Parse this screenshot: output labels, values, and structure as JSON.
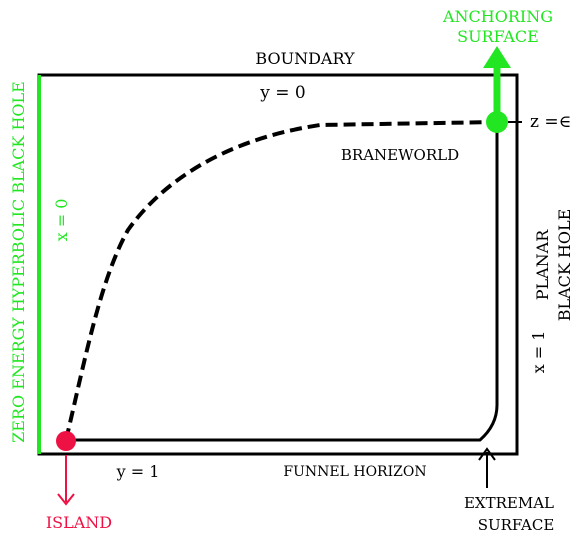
{
  "colors": {
    "ink": "#000000",
    "green": "#22e622",
    "red": "#ee1144",
    "white": "#ffffff"
  },
  "labels": {
    "anchoring_line1": "ANCHORING",
    "anchoring_line2": "SURFACE",
    "boundary": "BOUNDARY",
    "y_zero": "y  = 0",
    "z_epsilon": "z =∈",
    "braneworld": "BRANEWORLD",
    "x_zero": "x = 0",
    "zero_energy": "ZERO ENERGY HYPERBOLIC BLACK HOLE",
    "planar_line1": "PLANAR",
    "planar_line2": "BLACK HOLE",
    "x_one": "x = 1",
    "y_one": "y = 1",
    "funnel_horizon": "FUNNEL HORIZON",
    "extremal_line1": "EXTREMAL",
    "extremal_line2": "SURFACE",
    "island": "ISLAND"
  }
}
